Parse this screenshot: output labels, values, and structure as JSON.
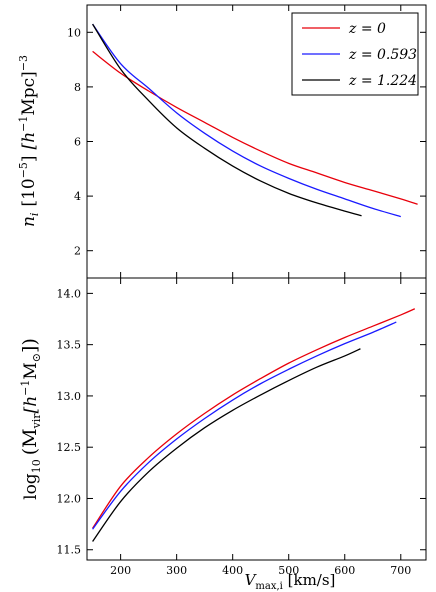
{
  "chart_data": [
    {
      "type": "line",
      "ylabel": "n_i [10^-5] [h^-1 Mpc]^-3",
      "ylabel_parts": {
        "sym": "n",
        "sub": "i",
        "unit1": "[10",
        "exp1": "−5",
        "unit1_close": "]",
        "unit2": "[h",
        "exp2": "−1",
        "unit2_mid": "Mpc]",
        "exp3": "−3"
      },
      "xlim": [
        140,
        745
      ],
      "ylim": [
        1,
        11
      ],
      "yticks": [
        2,
        4,
        6,
        8,
        10
      ],
      "ytick_labels": [
        "2",
        "4",
        "6",
        "8",
        "10"
      ],
      "legend_placement": "top-right",
      "series": [
        {
          "name": "z = 0",
          "color": "#e8000b",
          "x": [
            150,
            200,
            250,
            300,
            350,
            400,
            450,
            500,
            550,
            600,
            650,
            700,
            730
          ],
          "y": [
            9.3,
            8.5,
            7.85,
            7.25,
            6.7,
            6.15,
            5.65,
            5.2,
            4.85,
            4.5,
            4.2,
            3.9,
            3.7
          ]
        },
        {
          "name": "z = 0.593",
          "color": "#1a1aff",
          "x": [
            150,
            200,
            250,
            300,
            350,
            400,
            450,
            500,
            550,
            600,
            650,
            700
          ],
          "y": [
            10.3,
            8.85,
            7.95,
            7.05,
            6.3,
            5.65,
            5.1,
            4.65,
            4.25,
            3.9,
            3.55,
            3.25
          ]
        },
        {
          "name": "z = 1.224",
          "color": "#000000",
          "x": [
            150,
            200,
            250,
            300,
            350,
            400,
            450,
            500,
            550,
            600,
            630
          ],
          "y": [
            10.3,
            8.65,
            7.5,
            6.5,
            5.75,
            5.1,
            4.55,
            4.1,
            3.75,
            3.45,
            3.28
          ]
        }
      ]
    },
    {
      "type": "line",
      "xlabel": "V_max,i [km/s]",
      "xlabel_parts": {
        "sym": "V",
        "sub": "max,i",
        "unit": " [km/s]"
      },
      "ylabel": "log10 (M_vir [h^-1 M_sun])",
      "ylabel_parts": {
        "func": "log",
        "func_sub": "10",
        "open": "(M",
        "sub": "vir",
        "mid": "[h",
        "exp": "−1",
        "msun": "M",
        "msun_sub": "⊙",
        "close": "])"
      },
      "xlim": [
        140,
        745
      ],
      "ylim": [
        11.4,
        14.15
      ],
      "xticks": [
        200,
        300,
        400,
        500,
        600,
        700
      ],
      "xtick_labels": [
        "200",
        "300",
        "400",
        "500",
        "600",
        "700"
      ],
      "yticks": [
        11.5,
        12.0,
        12.5,
        13.0,
        13.5,
        14.0
      ],
      "ytick_labels": [
        "11.5",
        "12.0",
        "12.5",
        "13.0",
        "13.5",
        "14.0"
      ],
      "series": [
        {
          "name": "z = 0",
          "color": "#e8000b",
          "x": [
            150,
            200,
            250,
            300,
            350,
            400,
            450,
            500,
            550,
            600,
            650,
            700,
            725
          ],
          "y": [
            11.71,
            12.12,
            12.4,
            12.63,
            12.83,
            13.01,
            13.17,
            13.32,
            13.45,
            13.57,
            13.68,
            13.79,
            13.85
          ]
        },
        {
          "name": "z = 0.593",
          "color": "#1a1aff",
          "x": [
            150,
            200,
            250,
            300,
            350,
            400,
            450,
            500,
            550,
            600,
            650,
            692
          ],
          "y": [
            11.7,
            12.07,
            12.35,
            12.58,
            12.78,
            12.96,
            13.12,
            13.26,
            13.39,
            13.51,
            13.62,
            13.72
          ]
        },
        {
          "name": "z = 1.224",
          "color": "#000000",
          "x": [
            150,
            200,
            250,
            300,
            350,
            400,
            450,
            500,
            550,
            600,
            628
          ],
          "y": [
            11.58,
            11.97,
            12.26,
            12.49,
            12.69,
            12.86,
            13.01,
            13.15,
            13.28,
            13.39,
            13.46
          ]
        }
      ]
    }
  ]
}
